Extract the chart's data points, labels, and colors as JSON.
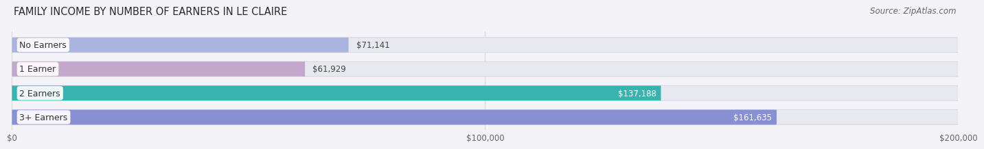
{
  "title": "FAMILY INCOME BY NUMBER OF EARNERS IN LE CLAIRE",
  "source": "Source: ZipAtlas.com",
  "categories": [
    "No Earners",
    "1 Earner",
    "2 Earners",
    "3+ Earners"
  ],
  "values": [
    71141,
    61929,
    137188,
    161635
  ],
  "labels": [
    "$71,141",
    "$61,929",
    "$137,188",
    "$161,635"
  ],
  "bar_colors": [
    "#aab4e0",
    "#c4a8cc",
    "#38b4b0",
    "#8890d4"
  ],
  "bar_bg_color": "#e8e8ef",
  "bar_edge_color": "#d8d8e4",
  "xlim": [
    0,
    200000
  ],
  "xticks": [
    0,
    100000,
    200000
  ],
  "xticklabels": [
    "$0",
    "$100,000",
    "$200,000"
  ],
  "title_fontsize": 10.5,
  "source_fontsize": 8.5,
  "label_fontsize": 8.5,
  "cat_fontsize": 9,
  "background_color": "#f4f4f8",
  "bar_height": 0.62,
  "fig_width": 14.06,
  "fig_height": 2.33,
  "value_threshold": 0.58,
  "label_dark_color": "#444444",
  "label_light_color": "#ffffff",
  "cat_label_color": "#333333",
  "grid_color": "#d0d0d8",
  "tick_color": "#666666"
}
